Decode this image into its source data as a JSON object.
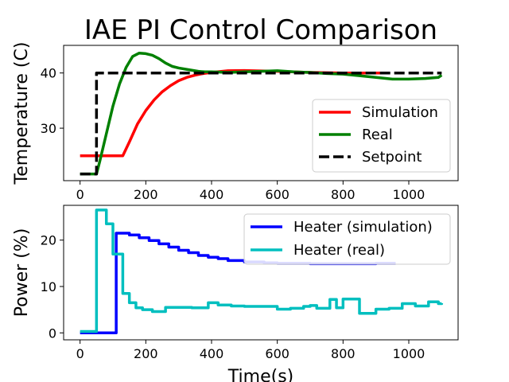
{
  "chart_data": [
    {
      "type": "line",
      "title": "IAE PI Control Comparison",
      "xlabel": "",
      "ylabel": "Temperature (C)",
      "xlim": [
        -50,
        1150
      ],
      "ylim": [
        20.5,
        45
      ],
      "xticks": [
        0,
        200,
        400,
        600,
        800,
        1000
      ],
      "yticks": [
        30,
        40
      ],
      "legend_position": "lower-right",
      "series": [
        {
          "name": "Simulation",
          "color": "#ff0000",
          "style": "solid",
          "x": [
            0,
            130,
            150,
            175,
            200,
            225,
            250,
            275,
            300,
            325,
            350,
            375,
            400,
            450,
            500,
            600,
            700,
            800,
            900,
            940
          ],
          "y": [
            25,
            25,
            27.5,
            30.8,
            33.2,
            35.1,
            36.6,
            37.7,
            38.6,
            39.2,
            39.6,
            39.9,
            40.1,
            40.4,
            40.45,
            40.3,
            40.1,
            40.0,
            40.0,
            40.0
          ]
        },
        {
          "name": "Real",
          "color": "#008000",
          "style": "solid",
          "x": [
            0,
            50,
            60,
            80,
            100,
            120,
            140,
            160,
            180,
            200,
            220,
            240,
            260,
            280,
            300,
            320,
            340,
            360,
            380,
            400,
            450,
            500,
            550,
            600,
            650,
            700,
            750,
            800,
            850,
            900,
            950,
            1000,
            1050,
            1090,
            1100
          ],
          "y": [
            21.7,
            21.7,
            24,
            29,
            34,
            38,
            41,
            43,
            43.6,
            43.5,
            43.2,
            42.6,
            41.8,
            41.2,
            40.9,
            40.7,
            40.5,
            40.3,
            40.2,
            40.2,
            40.1,
            40.2,
            40.3,
            40.4,
            40.2,
            40.1,
            39.9,
            39.8,
            39.5,
            39.2,
            38.9,
            38.9,
            39.0,
            39.2,
            39.6
          ]
        },
        {
          "name": "Setpoint",
          "color": "#000000",
          "style": "dashed",
          "x": [
            0,
            50,
            50,
            1100
          ],
          "y": [
            21.7,
            21.7,
            40,
            40
          ]
        }
      ]
    },
    {
      "type": "line",
      "title": "",
      "xlabel": "Time(s)",
      "ylabel": "Power (%)",
      "xlim": [
        -50,
        1150
      ],
      "ylim": [
        -1.5,
        27.5
      ],
      "xticks": [
        0,
        200,
        400,
        600,
        800,
        1000
      ],
      "yticks": [
        0,
        10,
        20
      ],
      "legend_position": "upper-right",
      "series": [
        {
          "name": "Heater (simulation)",
          "color": "#0000ff",
          "style": "steps",
          "x": [
            0,
            100,
            110,
            150,
            180,
            210,
            240,
            270,
            300,
            330,
            360,
            390,
            420,
            450,
            500,
            560,
            600,
            700,
            800,
            900,
            960
          ],
          "y": [
            0,
            0,
            21.5,
            21.1,
            20.5,
            19.9,
            19.2,
            18.5,
            17.8,
            17.3,
            16.7,
            16.3,
            16.0,
            15.6,
            15.3,
            15.1,
            15.0,
            14.9,
            14.9,
            15.0,
            15.0
          ]
        },
        {
          "name": "Heater (real)",
          "color": "#00bfbf",
          "style": "steps",
          "x": [
            0,
            50,
            80,
            100,
            130,
            150,
            170,
            190,
            220,
            260,
            300,
            340,
            390,
            420,
            460,
            500,
            550,
            600,
            640,
            680,
            700,
            720,
            760,
            780,
            800,
            850,
            900,
            940,
            980,
            1020,
            1060,
            1090,
            1100
          ],
          "y": [
            0.3,
            26.5,
            23.5,
            17,
            8.5,
            6.5,
            5.4,
            5.0,
            4.6,
            5.5,
            5.5,
            5.4,
            6.5,
            6.0,
            5.8,
            5.7,
            5.7,
            5.1,
            5.3,
            5.7,
            5.9,
            5.3,
            7.2,
            5.4,
            7.3,
            4.2,
            5.1,
            5.3,
            6.3,
            5.8,
            6.7,
            6.3,
            6.4
          ]
        }
      ]
    }
  ]
}
